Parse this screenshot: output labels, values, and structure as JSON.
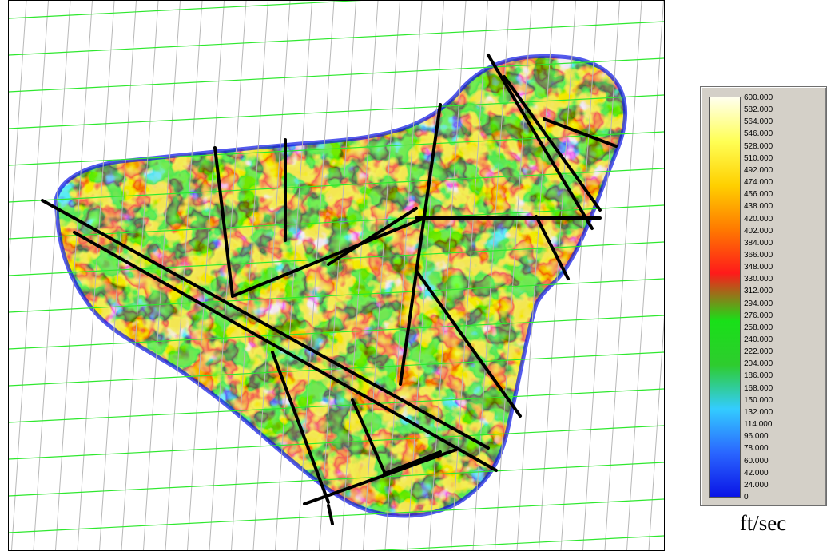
{
  "colors": {
    "grid_line": "#2ee82e",
    "fault_line": "#000000",
    "ramp": [
      "#0a14e6",
      "#2a66ff",
      "#33ccff",
      "#2ecc2e",
      "#18e018",
      "#ff1a1a",
      "#ff7a00",
      "#ffd000",
      "#ffff55",
      "#ffffee"
    ]
  },
  "legend": {
    "labels": [
      "600.000",
      "582.000",
      "564.000",
      "546.000",
      "528.000",
      "510.000",
      "492.000",
      "474.000",
      "456.000",
      "438.000",
      "420.000",
      "402.000",
      "384.000",
      "366.000",
      "348.000",
      "330.000",
      "312.000",
      "294.000",
      "276.000",
      "258.000",
      "240.000",
      "222.000",
      "204.000",
      "186.000",
      "168.000",
      "150.000",
      "132.000",
      "114.000",
      "96.000",
      "78.000",
      "60.000",
      "42.000",
      "24.000",
      "0"
    ],
    "unit": "ft/sec"
  }
}
